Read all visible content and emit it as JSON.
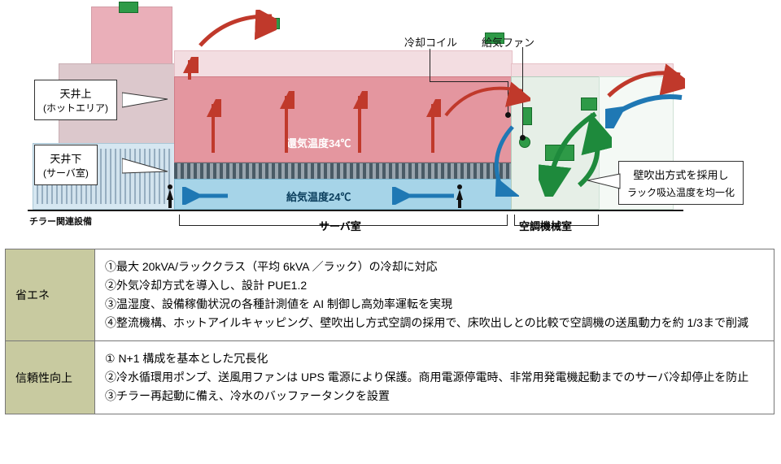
{
  "diagram": {
    "colors": {
      "hot_area": "#e4969f",
      "hot_roof": "#f3dde1",
      "supply_air": "#a6d4e8",
      "chiller_box": "#d6e7f1",
      "mech_room": "#e6efe7",
      "outdoor": "#f4f9f5",
      "green_unit": "#2e9a47",
      "ground": "#1a1a1a",
      "arrow_red": "#c0392b",
      "arrow_blue": "#1f78b4",
      "arrow_green": "#1e8a3c"
    },
    "callouts": {
      "ceiling_above": {
        "line1": "天井上",
        "line2": "(ホットエリア)"
      },
      "ceiling_below": {
        "line1": "天井下",
        "line2": "(サーバ室)"
      },
      "wall_blow": {
        "line1": "壁吹出方式を採用し",
        "line2": "ラック吸込温度を均一化"
      }
    },
    "pointer_labels": {
      "cooling_coil": "冷却コイル",
      "supply_fan": "給気ファン"
    },
    "inside_labels": {
      "return_temp": "還気温度34℃",
      "supply_temp": "給気温度24℃"
    },
    "room_labels": {
      "chiller": "チラー関連設備",
      "server": "サーバ室",
      "mech": "空調機械室"
    }
  },
  "table": {
    "rows": [
      {
        "header": "省エネ",
        "items": [
          "①最大 20kVA/ラッククラス（平均 6kVA ／ラック）の冷却に対応",
          "②外気冷却方式を導入し、設計 PUE1.2",
          "③温湿度、設備稼働状況の各種計測値を AI 制御し高効率運転を実現",
          "④整流機構、ホットアイルキャッピング、壁吹出し方式空調の採用で、床吹出しとの比較で空調機の送風動力を約 1/3まで削減"
        ]
      },
      {
        "header": "信頼性向上",
        "items": [
          "① N+1 構成を基本とした冗長化",
          "②冷水循環用ポンプ、送風用ファンは UPS 電源により保護。商用電源停電時、非常用発電機起動までのサーバ冷却停止を防止",
          "③チラー再起動に備え、冷水のバッファータンクを設置"
        ]
      }
    ]
  }
}
